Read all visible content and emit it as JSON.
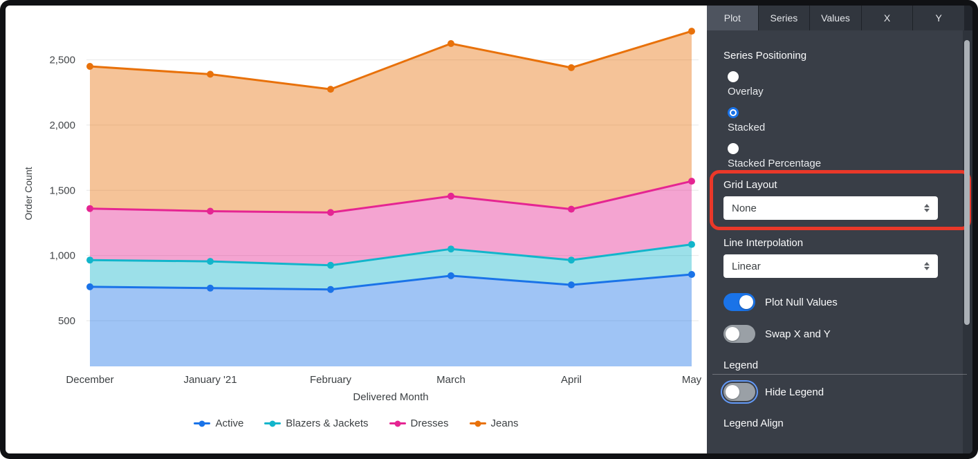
{
  "chart_data": {
    "type": "area",
    "stacked": true,
    "title": "",
    "x_categories": [
      "December",
      "January '21",
      "February",
      "March",
      "April",
      "May"
    ],
    "series": [
      {
        "name": "Active",
        "color": "#1A73E8",
        "values": [
          760,
          750,
          740,
          845,
          775,
          855
        ]
      },
      {
        "name": "Blazers & Jackets",
        "color": "#12B5CB",
        "values": [
          205,
          205,
          185,
          205,
          190,
          230
        ]
      },
      {
        "name": "Dresses",
        "color": "#E52592",
        "values": [
          395,
          385,
          405,
          405,
          390,
          485
        ]
      },
      {
        "name": "Jeans",
        "color": "#E8710A",
        "values": [
          1090,
          1050,
          945,
          1170,
          1085,
          1150
        ]
      }
    ],
    "cumulative_totals_note": "stacked totals per month: [2450, 2390, 2275, 2625, 2440, 2720]",
    "xlabel": "Delivered Month",
    "ylabel": "Order Count",
    "ylim": [
      150,
      2800
    ],
    "yticks": [
      500,
      1000,
      1500,
      2000,
      2500
    ],
    "grid": "horizontal",
    "legend_position": "bottom"
  },
  "panel": {
    "tabs": [
      {
        "label": "Plot",
        "active": true
      },
      {
        "label": "Series",
        "active": false
      },
      {
        "label": "Values",
        "active": false
      },
      {
        "label": "X",
        "active": false
      },
      {
        "label": "Y",
        "active": false
      }
    ],
    "series_positioning": {
      "label": "Series Positioning",
      "options": [
        {
          "label": "Overlay",
          "selected": false
        },
        {
          "label": "Stacked",
          "selected": true
        },
        {
          "label": "Stacked Percentage",
          "selected": false
        }
      ]
    },
    "grid_layout": {
      "label": "Grid Layout",
      "value": "None"
    },
    "line_interpolation": {
      "label": "Line Interpolation",
      "value": "Linear"
    },
    "toggles": [
      {
        "label": "Plot Null Values",
        "on": true
      },
      {
        "label": "Swap X and Y",
        "on": false
      }
    ],
    "legend_section": {
      "heading": "Legend"
    },
    "hide_legend": {
      "label": "Hide Legend",
      "on": false
    },
    "legend_align_label": "Legend Align"
  },
  "annotation": {
    "color": "#EA3829",
    "target": "Grid Layout"
  }
}
